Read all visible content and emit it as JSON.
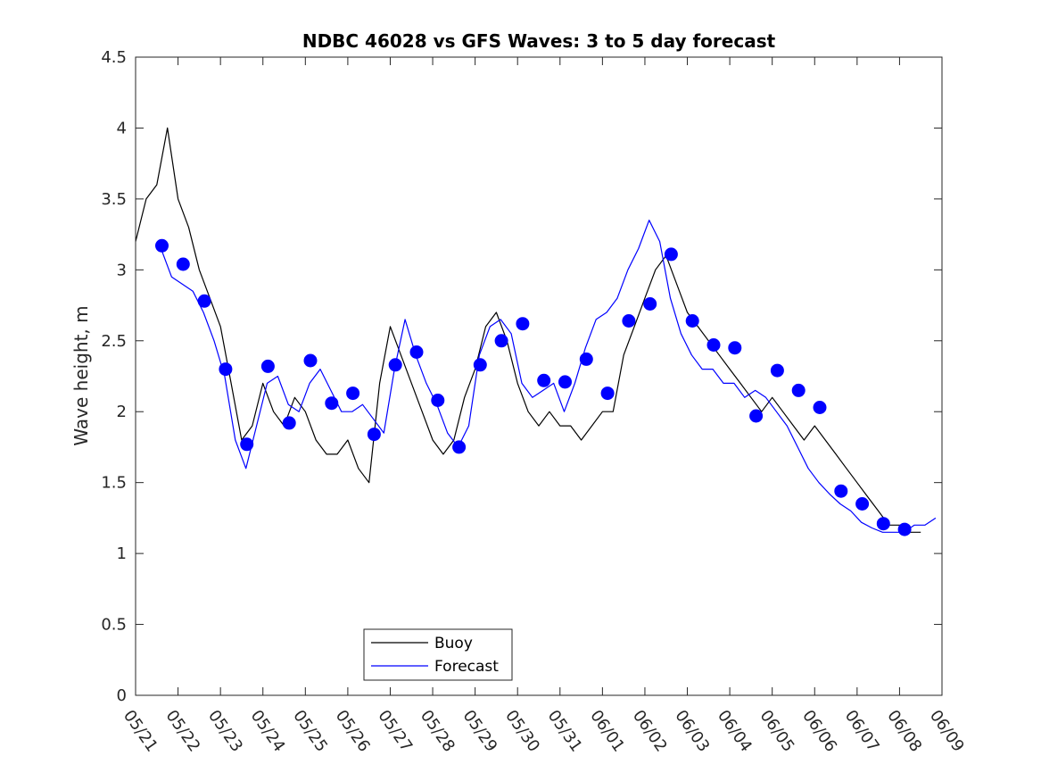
{
  "chart_data": {
    "type": "line",
    "title": "NDBC 46028 vs GFS Waves: 3 to 5 day forecast",
    "ylabel": "Wave height, m",
    "xlabel": "",
    "ylim": [
      0,
      4.5
    ],
    "yticks": [
      "0",
      "0.5",
      "1",
      "1.5",
      "2",
      "2.5",
      "3",
      "3.5",
      "4",
      "4.5"
    ],
    "xlim_days": [
      0,
      19
    ],
    "xtick_labels": [
      "05/21",
      "05/22",
      "05/23",
      "05/24",
      "05/25",
      "05/26",
      "05/27",
      "05/28",
      "05/29",
      "05/30",
      "05/31",
      "06/01",
      "06/02",
      "06/03",
      "06/04",
      "06/05",
      "06/06",
      "06/07",
      "06/08",
      "06/09"
    ],
    "legend": {
      "position": "bottom-left",
      "entries": [
        "Buoy",
        "Forecast"
      ]
    },
    "colors": {
      "buoy": "#000000",
      "forecast": "#0000ff",
      "points": "#0000ff"
    },
    "series": [
      {
        "name": "Buoy",
        "x": [
          0,
          0.25,
          0.5,
          0.75,
          1,
          1.25,
          1.5,
          1.75,
          2,
          2.25,
          2.5,
          2.75,
          3,
          3.25,
          3.5,
          3.75,
          4,
          4.25,
          4.5,
          4.75,
          5,
          5.25,
          5.5,
          5.75,
          6,
          6.25,
          6.5,
          6.75,
          7,
          7.25,
          7.5,
          7.75,
          8,
          8.25,
          8.5,
          8.75,
          9,
          9.25,
          9.5,
          9.75,
          10,
          10.25,
          10.5,
          10.75,
          11,
          11.25,
          11.5,
          11.75,
          12,
          12.25,
          12.5,
          12.75,
          13,
          13.25,
          13.5,
          13.75,
          14,
          14.25,
          14.5,
          14.75,
          15,
          15.25,
          15.5,
          15.75,
          16,
          16.25,
          16.5,
          16.75,
          17,
          17.25,
          17.5,
          17.75,
          18,
          18.25,
          18.5
        ],
        "values": [
          3.2,
          3.5,
          3.6,
          4.0,
          3.5,
          3.3,
          3.0,
          2.8,
          2.6,
          2.2,
          1.8,
          1.9,
          2.2,
          2.0,
          1.9,
          2.1,
          2.0,
          1.8,
          1.7,
          1.7,
          1.8,
          1.6,
          1.5,
          2.2,
          2.6,
          2.4,
          2.2,
          2.0,
          1.8,
          1.7,
          1.8,
          2.1,
          2.3,
          2.6,
          2.7,
          2.5,
          2.2,
          2.0,
          1.9,
          2.0,
          1.9,
          1.9,
          1.8,
          1.9,
          2.0,
          2.0,
          2.4,
          2.6,
          2.8,
          3.0,
          3.1,
          2.9,
          2.7,
          2.6,
          2.5,
          2.4,
          2.3,
          2.2,
          2.1,
          2.0,
          2.1,
          2.0,
          1.9,
          1.8,
          1.9,
          1.8,
          1.7,
          1.6,
          1.5,
          1.4,
          1.3,
          1.2,
          1.2,
          1.15,
          1.15
        ]
      },
      {
        "name": "Forecast",
        "x": [
          0.6,
          0.85,
          1.1,
          1.35,
          1.6,
          1.85,
          2.1,
          2.35,
          2.6,
          2.85,
          3.1,
          3.35,
          3.6,
          3.85,
          4.1,
          4.35,
          4.6,
          4.85,
          5.1,
          5.35,
          5.6,
          5.85,
          6.1,
          6.35,
          6.6,
          6.85,
          7.1,
          7.35,
          7.6,
          7.85,
          8.1,
          8.35,
          8.6,
          8.85,
          9.1,
          9.35,
          9.6,
          9.85,
          10.1,
          10.35,
          10.6,
          10.85,
          11.1,
          11.35,
          11.6,
          11.85,
          12.1,
          12.35,
          12.6,
          12.85,
          13.1,
          13.35,
          13.6,
          13.85,
          14.1,
          14.35,
          14.6,
          14.85,
          15.1,
          15.35,
          15.6,
          15.85,
          16.1,
          16.35,
          16.6,
          16.85,
          17.1,
          17.35,
          17.6,
          17.85,
          18.1,
          18.35,
          18.6,
          18.85
        ],
        "values": [
          3.15,
          2.95,
          2.9,
          2.85,
          2.7,
          2.5,
          2.25,
          1.8,
          1.6,
          1.9,
          2.2,
          2.25,
          2.05,
          2.0,
          2.2,
          2.3,
          2.15,
          2.0,
          2.0,
          2.05,
          1.95,
          1.85,
          2.3,
          2.65,
          2.4,
          2.2,
          2.05,
          1.85,
          1.75,
          1.9,
          2.4,
          2.6,
          2.65,
          2.55,
          2.2,
          2.1,
          2.15,
          2.2,
          2.0,
          2.2,
          2.45,
          2.65,
          2.7,
          2.8,
          3.0,
          3.15,
          3.35,
          3.2,
          2.8,
          2.55,
          2.4,
          2.3,
          2.3,
          2.2,
          2.2,
          2.1,
          2.15,
          2.1,
          2.0,
          1.9,
          1.75,
          1.6,
          1.5,
          1.42,
          1.35,
          1.3,
          1.22,
          1.18,
          1.15,
          1.15,
          1.15,
          1.2,
          1.2,
          1.25
        ]
      }
    ],
    "points": {
      "name": "Forecast points",
      "x": [
        0.62,
        1.12,
        1.62,
        2.12,
        2.62,
        3.12,
        3.62,
        4.12,
        4.62,
        5.12,
        5.62,
        6.12,
        6.62,
        7.12,
        7.62,
        8.12,
        8.62,
        9.12,
        9.62,
        10.12,
        10.62,
        11.12,
        11.62,
        12.12,
        12.62,
        13.12,
        13.62,
        14.12,
        14.62,
        15.12,
        15.62,
        16.12,
        16.62,
        17.12,
        17.62,
        18.12
      ],
      "values": [
        3.17,
        3.04,
        2.78,
        2.3,
        1.77,
        2.32,
        1.92,
        2.36,
        2.06,
        2.13,
        1.84,
        2.33,
        2.42,
        2.08,
        1.75,
        2.33,
        2.5,
        2.62,
        2.22,
        2.21,
        2.37,
        2.13,
        2.64,
        2.76,
        3.11,
        2.64,
        2.47,
        2.45,
        1.97,
        2.29,
        2.15,
        2.03,
        1.44,
        1.35,
        1.21,
        1.17
      ]
    }
  }
}
